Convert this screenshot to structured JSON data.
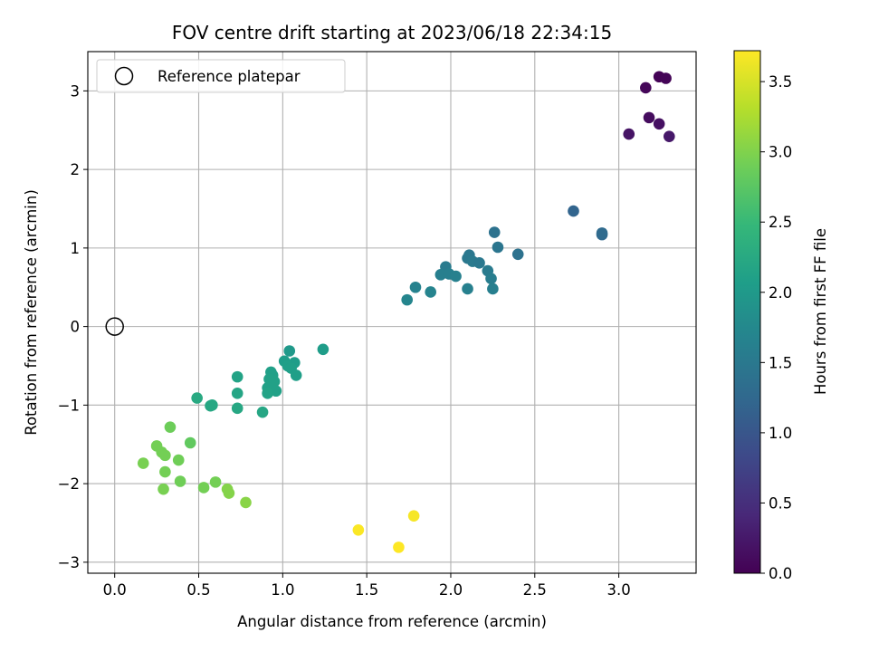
{
  "chart_data": {
    "type": "scatter",
    "title": "FOV centre drift starting at 2023/06/18 22:34:15",
    "xlabel": "Angular distance from reference (arcmin)",
    "ylabel": "Rotation from reference (arcmin)",
    "xlim": [
      -0.16,
      3.46
    ],
    "ylim": [
      -3.14,
      3.5
    ],
    "xticks": [
      0.0,
      0.5,
      1.0,
      1.5,
      2.0,
      2.5,
      3.0
    ],
    "xtick_labels": [
      "0.0",
      "0.5",
      "1.0",
      "1.5",
      "2.0",
      "2.5",
      "3.0"
    ],
    "yticks": [
      -3,
      -2,
      -1,
      0,
      1,
      2,
      3
    ],
    "ytick_labels": [
      "−3",
      "−2",
      "−1",
      "0",
      "1",
      "2",
      "3"
    ],
    "grid": true,
    "legend": {
      "placement": "top-left",
      "entries": [
        {
          "label": "Reference platepar",
          "marker": "open-circle",
          "x": 0.0,
          "y": 0.0
        }
      ]
    },
    "colorbar": {
      "label": "Hours from first FF file",
      "colormap": "viridis",
      "range": [
        0.0,
        3.72
      ],
      "ticks": [
        0.0,
        0.5,
        1.0,
        1.5,
        2.0,
        2.5,
        3.0,
        3.5
      ],
      "tick_labels": [
        "0.0",
        "0.5",
        "1.0",
        "1.5",
        "2.0",
        "2.5",
        "3.0",
        "3.5"
      ]
    },
    "colormap_stops": [
      "#440154",
      "#482878",
      "#3e4989",
      "#31688e",
      "#26828e",
      "#1f9e89",
      "#35b779",
      "#6ece58",
      "#b5de2b",
      "#fde725"
    ],
    "reference_marker_color": "#000000",
    "points": [
      {
        "x": 3.24,
        "y": 3.18,
        "t": 0.02
      },
      {
        "x": 3.28,
        "y": 3.16,
        "t": 0.04
      },
      {
        "x": 3.16,
        "y": 3.04,
        "t": 0.06
      },
      {
        "x": 3.18,
        "y": 2.66,
        "t": 0.12
      },
      {
        "x": 3.24,
        "y": 2.58,
        "t": 0.16
      },
      {
        "x": 3.06,
        "y": 2.45,
        "t": 0.2
      },
      {
        "x": 3.3,
        "y": 2.42,
        "t": 0.24
      },
      {
        "x": 2.73,
        "y": 1.47,
        "t": 1.2
      },
      {
        "x": 2.9,
        "y": 1.17,
        "t": 1.25
      },
      {
        "x": 2.9,
        "y": 1.19,
        "t": 1.28
      },
      {
        "x": 2.26,
        "y": 1.2,
        "t": 1.4
      },
      {
        "x": 2.28,
        "y": 1.01,
        "t": 1.45
      },
      {
        "x": 2.4,
        "y": 0.92,
        "t": 1.4
      },
      {
        "x": 2.11,
        "y": 0.91,
        "t": 1.48
      },
      {
        "x": 2.1,
        "y": 0.87,
        "t": 1.5
      },
      {
        "x": 2.13,
        "y": 0.83,
        "t": 1.52
      },
      {
        "x": 2.17,
        "y": 0.81,
        "t": 1.5
      },
      {
        "x": 1.97,
        "y": 0.76,
        "t": 1.55
      },
      {
        "x": 2.22,
        "y": 0.71,
        "t": 1.55
      },
      {
        "x": 1.94,
        "y": 0.66,
        "t": 1.6
      },
      {
        "x": 1.99,
        "y": 0.67,
        "t": 1.6
      },
      {
        "x": 2.03,
        "y": 0.64,
        "t": 1.62
      },
      {
        "x": 2.24,
        "y": 0.61,
        "t": 1.58
      },
      {
        "x": 1.79,
        "y": 0.5,
        "t": 1.65
      },
      {
        "x": 2.1,
        "y": 0.48,
        "t": 1.62
      },
      {
        "x": 2.25,
        "y": 0.48,
        "t": 1.6
      },
      {
        "x": 1.88,
        "y": 0.44,
        "t": 1.68
      },
      {
        "x": 1.74,
        "y": 0.34,
        "t": 1.7
      },
      {
        "x": 1.24,
        "y": -0.29,
        "t": 2.05
      },
      {
        "x": 1.04,
        "y": -0.31,
        "t": 2.0
      },
      {
        "x": 1.01,
        "y": -0.44,
        "t": 2.05
      },
      {
        "x": 1.07,
        "y": -0.46,
        "t": 2.05
      },
      {
        "x": 1.03,
        "y": -0.5,
        "t": 2.08
      },
      {
        "x": 1.05,
        "y": -0.53,
        "t": 2.08
      },
      {
        "x": 0.93,
        "y": -0.58,
        "t": 2.1
      },
      {
        "x": 0.94,
        "y": -0.62,
        "t": 2.1
      },
      {
        "x": 1.08,
        "y": -0.62,
        "t": 2.08
      },
      {
        "x": 0.73,
        "y": -0.64,
        "t": 2.15
      },
      {
        "x": 0.92,
        "y": -0.67,
        "t": 2.12
      },
      {
        "x": 0.95,
        "y": -0.7,
        "t": 2.12
      },
      {
        "x": 0.91,
        "y": -0.78,
        "t": 2.12
      },
      {
        "x": 0.96,
        "y": -0.82,
        "t": 2.12
      },
      {
        "x": 0.73,
        "y": -0.85,
        "t": 2.18
      },
      {
        "x": 0.91,
        "y": -0.85,
        "t": 2.15
      },
      {
        "x": 0.49,
        "y": -0.91,
        "t": 2.25
      },
      {
        "x": 0.57,
        "y": -1.01,
        "t": 2.22
      },
      {
        "x": 0.58,
        "y": -1.0,
        "t": 2.22
      },
      {
        "x": 0.73,
        "y": -1.04,
        "t": 2.22
      },
      {
        "x": 0.88,
        "y": -1.09,
        "t": 2.2
      },
      {
        "x": 0.33,
        "y": -1.28,
        "t": 2.88
      },
      {
        "x": 0.45,
        "y": -1.48,
        "t": 2.8
      },
      {
        "x": 0.25,
        "y": -1.52,
        "t": 2.92
      },
      {
        "x": 0.28,
        "y": -1.6,
        "t": 2.92
      },
      {
        "x": 0.3,
        "y": -1.64,
        "t": 2.92
      },
      {
        "x": 0.38,
        "y": -1.7,
        "t": 2.9
      },
      {
        "x": 0.17,
        "y": -1.74,
        "t": 2.95
      },
      {
        "x": 0.3,
        "y": -1.85,
        "t": 2.92
      },
      {
        "x": 0.39,
        "y": -1.97,
        "t": 2.9
      },
      {
        "x": 0.6,
        "y": -1.98,
        "t": 2.92
      },
      {
        "x": 0.53,
        "y": -2.05,
        "t": 2.92
      },
      {
        "x": 0.67,
        "y": -2.07,
        "t": 3.02
      },
      {
        "x": 0.29,
        "y": -2.07,
        "t": 2.95
      },
      {
        "x": 0.68,
        "y": -2.12,
        "t": 3.02
      },
      {
        "x": 0.78,
        "y": -2.24,
        "t": 3.05
      },
      {
        "x": 1.78,
        "y": -2.41,
        "t": 3.68
      },
      {
        "x": 1.45,
        "y": -2.59,
        "t": 3.7
      },
      {
        "x": 1.69,
        "y": -2.81,
        "t": 3.72
      }
    ]
  }
}
